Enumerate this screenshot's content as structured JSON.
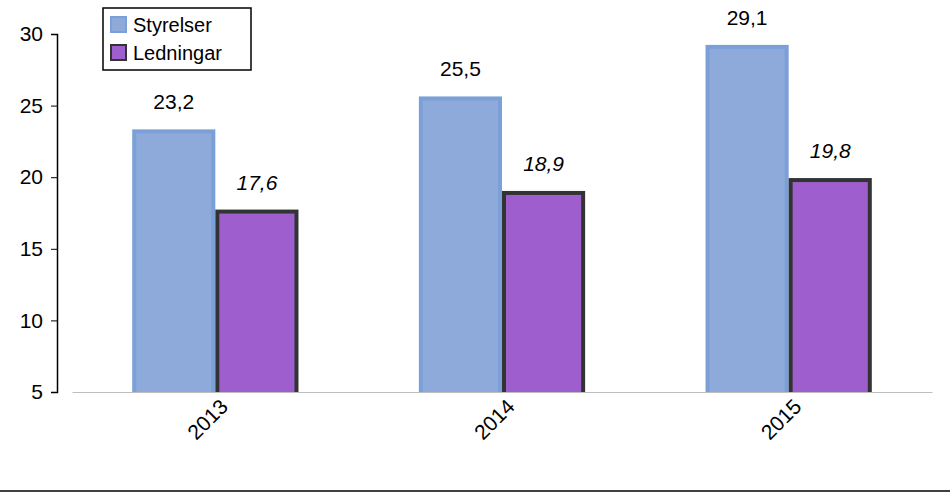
{
  "chart_data": {
    "type": "bar",
    "categories": [
      "2013",
      "2014",
      "2015"
    ],
    "series": [
      {
        "name": "Styrelser",
        "color": "#8eaadb",
        "values": [
          23.2,
          25.5,
          29.1
        ],
        "value_labels": [
          "23,2",
          "25,5",
          "29,1"
        ]
      },
      {
        "name": "Ledningar",
        "color": "#9e5ece",
        "values": [
          17.6,
          18.9,
          19.8
        ],
        "value_labels": [
          "17,6",
          "18,9",
          "19,8"
        ]
      }
    ],
    "ylim": [
      5,
      30
    ],
    "yticks": [
      5,
      10,
      15,
      20,
      25,
      30
    ],
    "grid": false,
    "legend": "top-left",
    "data_labels": true
  }
}
